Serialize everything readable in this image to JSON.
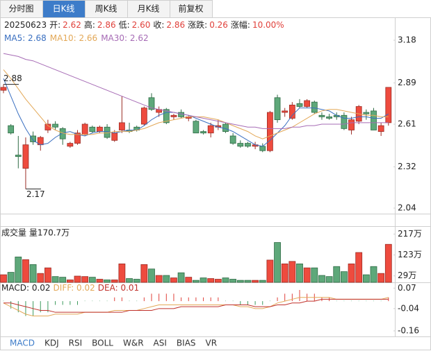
{
  "tabs": [
    "分时图",
    "日K线",
    "周K线",
    "月K线",
    "前复权"
  ],
  "active_tab": 1,
  "info": {
    "date": "20250623",
    "items": [
      {
        "label": "开:",
        "value": "2.62"
      },
      {
        "label": "高:",
        "value": "2.86"
      },
      {
        "label": "低:",
        "value": "2.60"
      },
      {
        "label": "收:",
        "value": "2.86"
      },
      {
        "label": "涨跌:",
        "value": "0.26"
      },
      {
        "label": "涨幅:",
        "value": "10.00%"
      }
    ]
  },
  "indicator_tabs": [
    "MACD",
    "KDJ",
    "RSI",
    "BOLL",
    "W&R",
    "ASI",
    "BIAS",
    "VR"
  ],
  "active_indicator": 0,
  "chart_data": [
    {
      "type": "candlestick",
      "up_color": "#ee4b3e",
      "down_color": "#5ea87a",
      "ylim": [
        2.04,
        3.18
      ],
      "yticks": [
        3.18,
        2.89,
        2.61,
        2.32,
        2.04
      ],
      "grid": false,
      "open": [
        2.84,
        2.6,
        2.4,
        2.31,
        2.53,
        2.47,
        2.57,
        2.61,
        2.58,
        2.46,
        2.48,
        2.54,
        2.59,
        2.56,
        2.59,
        2.5,
        2.57,
        2.57,
        2.59,
        2.61,
        2.79,
        2.69,
        2.71,
        2.66,
        2.69,
        2.65,
        2.63,
        2.56,
        2.55,
        2.59,
        2.61,
        2.53,
        2.48,
        2.48,
        2.46,
        2.46,
        2.43,
        2.79,
        2.69,
        2.65,
        2.75,
        2.73,
        2.76,
        2.67,
        2.66,
        2.67,
        2.67,
        2.57,
        2.63,
        2.69,
        2.7,
        2.56,
        2.62
      ],
      "high": [
        2.88,
        2.61,
        2.53,
        2.52,
        2.56,
        2.53,
        2.64,
        2.63,
        2.59,
        2.49,
        2.57,
        2.62,
        2.6,
        2.6,
        2.61,
        2.57,
        2.8,
        2.62,
        2.6,
        2.73,
        2.82,
        2.73,
        2.72,
        2.68,
        2.71,
        2.67,
        2.64,
        2.57,
        2.62,
        2.64,
        2.62,
        2.55,
        2.5,
        2.49,
        2.49,
        2.48,
        2.7,
        2.81,
        2.72,
        2.76,
        2.78,
        2.78,
        2.77,
        2.69,
        2.68,
        2.69,
        2.69,
        2.66,
        2.74,
        2.71,
        2.72,
        2.62,
        2.86
      ],
      "low": [
        2.82,
        2.54,
        2.31,
        2.17,
        2.47,
        2.43,
        2.55,
        2.57,
        2.47,
        2.45,
        2.47,
        2.53,
        2.55,
        2.55,
        2.51,
        2.49,
        2.55,
        2.55,
        2.56,
        2.6,
        2.7,
        2.66,
        2.61,
        2.64,
        2.65,
        2.63,
        2.55,
        2.54,
        2.52,
        2.57,
        2.55,
        2.47,
        2.45,
        2.45,
        2.44,
        2.42,
        2.42,
        2.62,
        2.66,
        2.64,
        2.72,
        2.72,
        2.68,
        2.64,
        2.64,
        2.64,
        2.57,
        2.54,
        2.61,
        2.64,
        2.57,
        2.53,
        2.6
      ],
      "close": [
        2.86,
        2.55,
        2.39,
        2.47,
        2.49,
        2.52,
        2.61,
        2.59,
        2.51,
        2.48,
        2.55,
        2.61,
        2.56,
        2.59,
        2.52,
        2.55,
        2.62,
        2.56,
        2.57,
        2.72,
        2.71,
        2.71,
        2.62,
        2.67,
        2.66,
        2.66,
        2.55,
        2.55,
        2.6,
        2.6,
        2.56,
        2.48,
        2.46,
        2.46,
        2.47,
        2.43,
        2.69,
        2.64,
        2.7,
        2.74,
        2.73,
        2.77,
        2.69,
        2.66,
        2.65,
        2.66,
        2.58,
        2.64,
        2.73,
        2.68,
        2.57,
        2.6,
        2.86
      ],
      "series": [
        {
          "name": "MA5: 2.68",
          "color": "#3a6fc0",
          "values": [
            2.92,
            2.8,
            2.68,
            2.58,
            2.5,
            2.47,
            2.48,
            2.52,
            2.55,
            2.56,
            2.54,
            2.53,
            2.55,
            2.56,
            2.56,
            2.55,
            2.56,
            2.57,
            2.57,
            2.6,
            2.64,
            2.67,
            2.69,
            2.69,
            2.68,
            2.67,
            2.65,
            2.63,
            2.61,
            2.59,
            2.58,
            2.56,
            2.53,
            2.5,
            2.47,
            2.46,
            2.5,
            2.55,
            2.6,
            2.67,
            2.72,
            2.72,
            2.72,
            2.71,
            2.7,
            2.67,
            2.65,
            2.65,
            2.66,
            2.66,
            2.65,
            2.65,
            2.68
          ]
        },
        {
          "name": "MA10: 2.66",
          "color": "#e3a857",
          "values": [
            2.98,
            2.92,
            2.85,
            2.78,
            2.72,
            2.66,
            2.6,
            2.57,
            2.55,
            2.54,
            2.54,
            2.54,
            2.54,
            2.55,
            2.55,
            2.56,
            2.56,
            2.56,
            2.57,
            2.58,
            2.6,
            2.62,
            2.63,
            2.64,
            2.65,
            2.66,
            2.66,
            2.66,
            2.65,
            2.64,
            2.62,
            2.6,
            2.58,
            2.56,
            2.53,
            2.51,
            2.53,
            2.55,
            2.57,
            2.59,
            2.62,
            2.65,
            2.68,
            2.7,
            2.71,
            2.71,
            2.7,
            2.69,
            2.68,
            2.67,
            2.67,
            2.66,
            2.66
          ]
        },
        {
          "name": "MA30: 2.62",
          "color": "#a66bb5",
          "values": [
            3.09,
            3.08,
            3.07,
            3.05,
            3.04,
            3.02,
            3.0,
            2.98,
            2.96,
            2.94,
            2.92,
            2.9,
            2.88,
            2.86,
            2.84,
            2.82,
            2.8,
            2.78,
            2.76,
            2.74,
            2.72,
            2.71,
            2.7,
            2.69,
            2.68,
            2.67,
            2.66,
            2.65,
            2.64,
            2.63,
            2.62,
            2.61,
            2.6,
            2.59,
            2.59,
            2.58,
            2.58,
            2.58,
            2.58,
            2.59,
            2.59,
            2.6,
            2.6,
            2.61,
            2.61,
            2.61,
            2.61,
            2.62,
            2.62,
            2.62,
            2.62,
            2.62,
            2.62
          ]
        }
      ],
      "annotations": [
        2.88,
        2.17
      ]
    },
    {
      "type": "volume",
      "title": "成交量 量170.7万",
      "ylim": [
        0,
        240
      ],
      "yticks": [
        {
          "value": 217,
          "label": "217万"
        },
        {
          "value": 123,
          "label": "123万"
        },
        {
          "value": 29,
          "label": "29万"
        }
      ],
      "values": [
        34,
        45,
        114,
        102,
        80,
        40,
        65,
        26,
        23,
        11,
        28,
        26,
        23,
        14,
        11,
        11,
        83,
        17,
        14,
        80,
        60,
        31,
        31,
        20,
        43,
        23,
        9,
        20,
        17,
        14,
        20,
        14,
        9,
        9,
        9,
        9,
        100,
        179,
        83,
        94,
        83,
        65,
        65,
        31,
        26,
        71,
        48,
        83,
        134,
        34,
        71,
        40,
        170.7
      ]
    },
    {
      "type": "macd",
      "ylim": [
        -0.19,
        0.09
      ],
      "yticks": [
        0.07,
        -0.04,
        -0.16
      ],
      "up_color": "#e0403a",
      "down_color": "#3c9a5c",
      "series": [
        {
          "name": "MACD: 0.02",
          "color": "#222222",
          "values": [
            0,
            -0.04,
            -0.06,
            -0.08,
            -0.08,
            -0.06,
            -0.06,
            -0.02,
            -0.02,
            -0.02,
            -0.02,
            0,
            0,
            0,
            0,
            0.02,
            0.02,
            0,
            0,
            0.02,
            0.04,
            0.04,
            0.04,
            0.04,
            0.02,
            0.02,
            0.02,
            0.02,
            0.02,
            0.02,
            0,
            0,
            -0.02,
            -0.02,
            -0.02,
            -0.02,
            0,
            0.02,
            0.04,
            0.04,
            0.06,
            0.04,
            0.04,
            0.02,
            0.02,
            0,
            0,
            0,
            0,
            0,
            0,
            0,
            0.02
          ]
        },
        {
          "name": "DIFF: 0.02",
          "color": "#e3a857",
          "values": [
            -0.01,
            -0.03,
            -0.05,
            -0.07,
            -0.08,
            -0.08,
            -0.08,
            -0.07,
            -0.07,
            -0.07,
            -0.07,
            -0.06,
            -0.06,
            -0.06,
            -0.06,
            -0.05,
            -0.05,
            -0.05,
            -0.05,
            -0.04,
            -0.03,
            -0.02,
            -0.02,
            -0.02,
            -0.02,
            -0.02,
            -0.02,
            -0.02,
            -0.02,
            -0.02,
            -0.02,
            -0.02,
            -0.03,
            -0.03,
            -0.04,
            -0.04,
            -0.03,
            -0.01,
            0,
            0.01,
            0.02,
            0.02,
            0.02,
            0.02,
            0.02,
            0.01,
            0.01,
            0.01,
            0.01,
            0.01,
            0.01,
            0.01,
            0.02
          ]
        },
        {
          "name": "DEA: 0.01",
          "color": "#c0302a",
          "values": [
            -0.01,
            -0.01,
            -0.02,
            -0.03,
            -0.04,
            -0.05,
            -0.05,
            -0.06,
            -0.06,
            -0.06,
            -0.06,
            -0.06,
            -0.06,
            -0.06,
            -0.06,
            -0.06,
            -0.06,
            -0.05,
            -0.05,
            -0.05,
            -0.05,
            -0.04,
            -0.04,
            -0.04,
            -0.03,
            -0.03,
            -0.03,
            -0.03,
            -0.03,
            -0.03,
            -0.02,
            -0.02,
            -0.02,
            -0.02,
            -0.03,
            -0.03,
            -0.03,
            -0.02,
            -0.02,
            -0.01,
            -0.01,
            0,
            0,
            0.01,
            0.01,
            0.01,
            0.01,
            0.01,
            0.01,
            0.01,
            0.01,
            0.01,
            0.01
          ]
        }
      ]
    }
  ]
}
